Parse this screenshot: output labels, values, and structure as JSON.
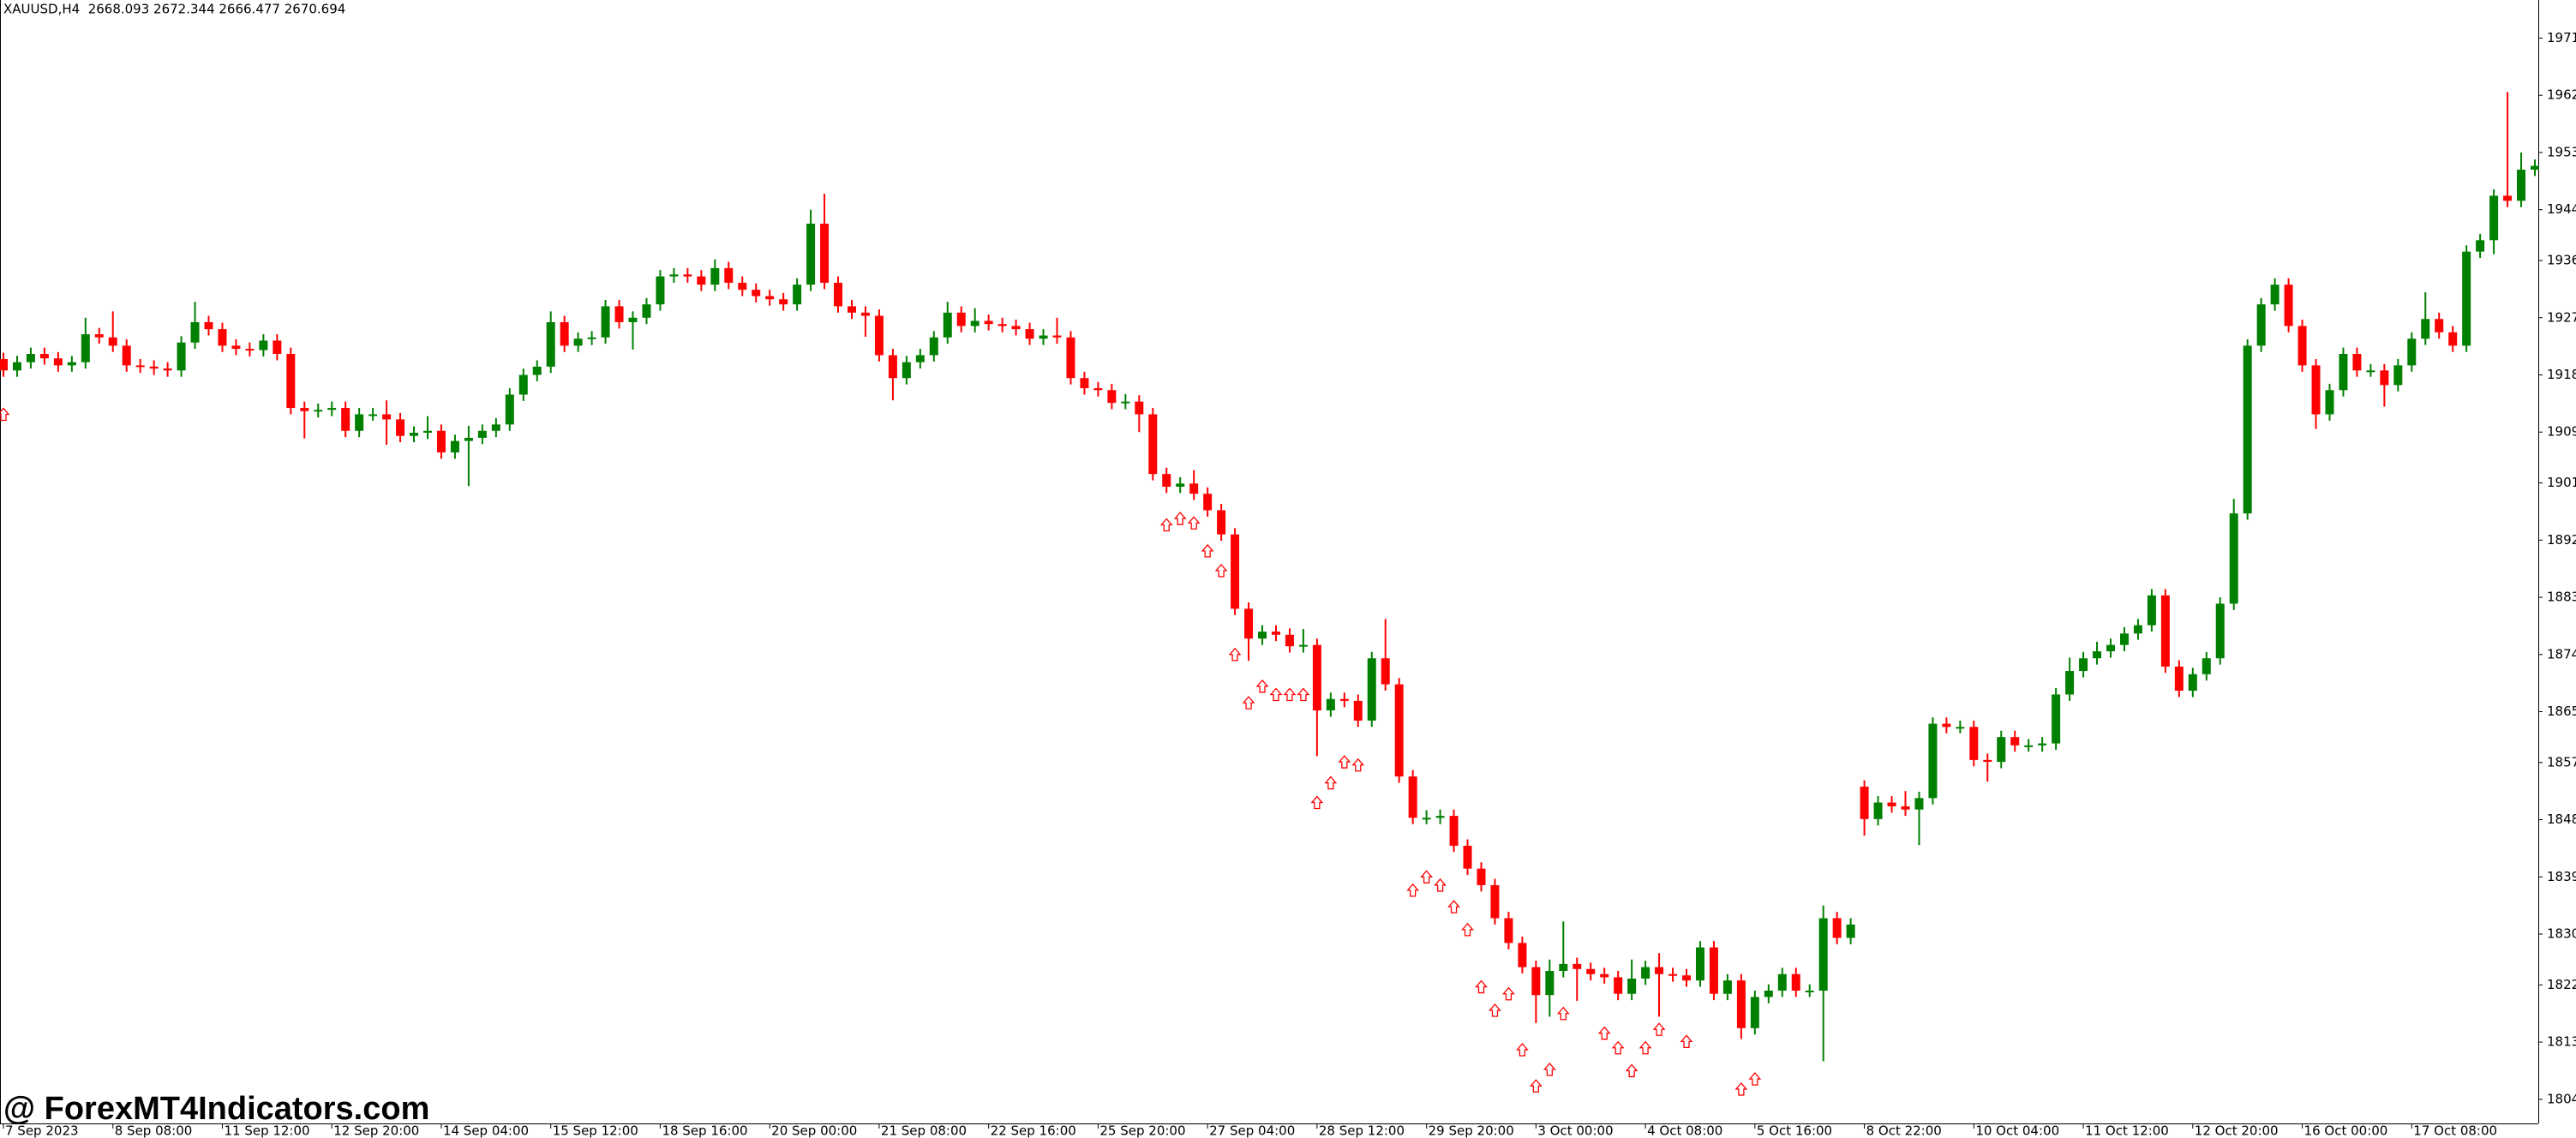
{
  "chart_data": {
    "type": "candlestick",
    "title": "XAUUSD,H4  2668.093 2672.344 2666.477 2670.694",
    "watermark": "@ ForexMT4Indicators.com",
    "up_color": "#008000",
    "down_color": "#ff0000",
    "categories": [
      "7 Sep 2023",
      null,
      null,
      null,
      null,
      null,
      null,
      null,
      "8 Sep 08:00",
      null,
      null,
      null,
      null,
      null,
      null,
      null,
      "11 Sep 12:00",
      null,
      null,
      null,
      null,
      null,
      null,
      null,
      "12 Sep 20:00",
      null,
      null,
      null,
      null,
      null,
      null,
      null,
      "14 Sep 04:00",
      null,
      null,
      null,
      null,
      null,
      null,
      null,
      "15 Sep 12:00",
      null,
      null,
      null,
      null,
      null,
      null,
      null,
      "18 Sep 16:00",
      null,
      null,
      null,
      null,
      null,
      null,
      null,
      "20 Sep 00:00",
      null,
      null,
      null,
      null,
      null,
      null,
      null,
      "21 Sep 08:00",
      null,
      null,
      null,
      null,
      null,
      null,
      null,
      "22 Sep 16:00",
      null,
      null,
      null,
      null,
      null,
      null,
      null,
      "25 Sep 20:00",
      null,
      null,
      null,
      null,
      null,
      null,
      null,
      "27 Sep 04:00",
      null,
      null,
      null,
      null,
      null,
      null,
      null,
      "28 Sep 12:00",
      null,
      null,
      null,
      null,
      null,
      null,
      null,
      "29 Sep 20:00",
      null,
      null,
      null,
      null,
      null,
      null,
      null,
      "3 Oct 00:00",
      null,
      null,
      null,
      null,
      null,
      null,
      null,
      "4 Oct 08:00",
      null,
      null,
      null,
      null,
      null,
      null,
      null,
      "5 Oct 16:00",
      null,
      null,
      null,
      null,
      null,
      null,
      null,
      "8 Oct 22:00",
      null,
      null,
      null,
      null,
      null,
      null,
      null,
      "10 Oct 04:00",
      null,
      null,
      null,
      null,
      null,
      null,
      null,
      "11 Oct 12:00",
      null,
      null,
      null,
      null,
      null,
      null,
      null,
      "12 Oct 20:00",
      null,
      null,
      null,
      null,
      null,
      null,
      null,
      "16 Oct 00:00",
      null,
      null,
      null,
      null,
      null,
      null,
      null,
      "17 Oct 08:00",
      null,
      null,
      null,
      null,
      null,
      null,
      null,
      null,
      null
    ],
    "open": [
      1920.5,
      1918.7,
      1920.0,
      1921.3,
      1920.6,
      1919.5,
      1920.0,
      1924.4,
      1923.9,
      1922.6,
      1919.5,
      1919.3,
      1919.0,
      1918.7,
      1923.1,
      1926.3,
      1925.2,
      1922.6,
      1922.1,
      1921.9,
      1923.4,
      1921.3,
      1912.8,
      1912.3,
      1912.5,
      1912.8,
      1909.2,
      1911.8,
      1911.8,
      1911.0,
      1908.4,
      1908.9,
      1909.2,
      1905.8,
      1907.6,
      1908.1,
      1909.2,
      1910.2,
      1914.9,
      1918.0,
      1919.3,
      1926.3,
      1922.6,
      1923.7,
      1923.9,
      1928.8,
      1926.3,
      1927.0,
      1929.1,
      1933.5,
      1933.8,
      1933.5,
      1932.2,
      1934.8,
      1932.5,
      1931.4,
      1930.4,
      1929.9,
      1929.1,
      1932.2,
      1941.8,
      1932.5,
      1928.8,
      1927.8,
      1927.3,
      1921.1,
      1917.5,
      1920.0,
      1921.1,
      1923.9,
      1927.8,
      1925.7,
      1926.5,
      1926.0,
      1925.7,
      1925.2,
      1923.7,
      1924.2,
      1923.9,
      1917.5,
      1915.9,
      1915.6,
      1913.6,
      1913.8,
      1911.8,
      1902.4,
      1900.4,
      1900.9,
      1899.3,
      1896.7,
      1892.9,
      1881.2,
      1876.5,
      1877.6,
      1877.1,
      1875.3,
      1875.5,
      1865.2,
      1867.0,
      1866.7,
      1863.6,
      1873.4,
      1869.3,
      1854.8,
      1848.3,
      1848.3,
      1848.6,
      1843.9,
      1840.3,
      1837.7,
      1832.5,
      1828.6,
      1824.8,
      1820.4,
      1824.2,
      1825.3,
      1824.5,
      1823.7,
      1823.2,
      1820.6,
      1823.0,
      1824.8,
      1823.7,
      1823.5,
      1822.7,
      1827.9,
      1820.6,
      1822.7,
      1815.2,
      1820.1,
      1821.1,
      1823.7,
      1821.1,
      1821.1,
      1832.5,
      1829.4,
      1853.2,
      1848.1,
      1850.7,
      1850.1,
      1849.6,
      1851.4,
      1863.1,
      1862.6,
      1862.6,
      1857.4,
      1857.1,
      1861.0,
      1859.7,
      1859.7,
      1860.0,
      1867.7,
      1871.4,
      1873.4,
      1874.5,
      1875.5,
      1877.3,
      1878.6,
      1883.3,
      1872.1,
      1868.3,
      1870.9,
      1873.4,
      1882.0,
      1896.2,
      1922.6,
      1929.1,
      1932.2,
      1925.7,
      1919.5,
      1911.8,
      1915.6,
      1921.3,
      1918.7,
      1918.7,
      1916.4,
      1919.5,
      1923.7,
      1926.8,
      1924.7,
      1922.6,
      1937.4,
      1939.2,
      1946.2,
      1945.4,
      1950.3
    ],
    "high": [
      1921.5,
      1921.0,
      1922.3,
      1922.3,
      1921.6,
      1921.0,
      1927.0,
      1925.4,
      1928.0,
      1923.6,
      1920.5,
      1920.3,
      1920.0,
      1924.1,
      1929.5,
      1927.3,
      1926.2,
      1923.6,
      1923.1,
      1924.4,
      1924.4,
      1922.3,
      1913.8,
      1913.5,
      1913.8,
      1913.8,
      1912.8,
      1912.8,
      1914.0,
      1912.0,
      1909.9,
      1911.5,
      1910.2,
      1908.6,
      1910.0,
      1910.2,
      1911.2,
      1915.9,
      1919.0,
      1920.3,
      1928.0,
      1927.3,
      1924.7,
      1924.9,
      1929.8,
      1929.8,
      1928.0,
      1930.1,
      1934.5,
      1934.8,
      1934.8,
      1934.5,
      1936.2,
      1935.8,
      1933.5,
      1932.4,
      1931.4,
      1930.9,
      1933.2,
      1944.0,
      1946.5,
      1933.5,
      1929.8,
      1928.8,
      1928.3,
      1922.1,
      1921.0,
      1922.1,
      1924.9,
      1929.5,
      1928.8,
      1928.5,
      1927.5,
      1927.0,
      1926.7,
      1926.2,
      1925.2,
      1927.0,
      1924.9,
      1918.5,
      1916.9,
      1916.6,
      1915.0,
      1914.8,
      1912.8,
      1903.4,
      1901.9,
      1903.0,
      1900.3,
      1897.7,
      1893.9,
      1882.2,
      1878.6,
      1878.6,
      1878.1,
      1878.0,
      1876.5,
      1868.0,
      1868.0,
      1867.7,
      1874.4,
      1879.6,
      1870.3,
      1855.8,
      1849.5,
      1849.6,
      1849.6,
      1844.9,
      1841.3,
      1838.7,
      1833.5,
      1829.6,
      1825.8,
      1826.0,
      1832.0,
      1826.3,
      1825.5,
      1824.7,
      1824.2,
      1826.0,
      1825.8,
      1827.0,
      1824.7,
      1824.5,
      1828.9,
      1828.9,
      1823.7,
      1823.7,
      1821.1,
      1822.1,
      1824.7,
      1824.7,
      1822.1,
      1834.5,
      1833.5,
      1832.5,
      1854.2,
      1851.7,
      1851.7,
      1852.5,
      1852.4,
      1864.1,
      1864.1,
      1863.6,
      1863.6,
      1858.4,
      1862.0,
      1862.0,
      1860.7,
      1861.0,
      1868.7,
      1873.5,
      1874.4,
      1876.0,
      1876.5,
      1878.3,
      1879.6,
      1884.3,
      1884.3,
      1873.1,
      1871.9,
      1874.4,
      1883.0,
      1898.5,
      1923.6,
      1930.1,
      1933.2,
      1933.2,
      1926.7,
      1920.5,
      1916.6,
      1922.3,
      1922.3,
      1919.7,
      1919.7,
      1920.5,
      1924.7,
      1931.0,
      1927.8,
      1925.7,
      1938.4,
      1940.2,
      1947.2,
      1962.5,
      1953.0,
      1951.9
    ],
    "low": [
      1917.7,
      1917.7,
      1919.0,
      1919.6,
      1918.5,
      1918.5,
      1919.0,
      1922.9,
      1921.6,
      1918.5,
      1918.3,
      1918.0,
      1917.7,
      1917.7,
      1922.1,
      1924.2,
      1921.6,
      1921.1,
      1920.9,
      1920.9,
      1920.3,
      1911.8,
      1908.0,
      1911.3,
      1911.5,
      1908.2,
      1908.2,
      1910.8,
      1907.0,
      1907.4,
      1907.4,
      1907.9,
      1904.8,
      1904.8,
      1900.5,
      1907.1,
      1908.2,
      1909.2,
      1913.9,
      1917.0,
      1918.3,
      1921.6,
      1921.6,
      1922.7,
      1922.9,
      1925.3,
      1922.0,
      1926.0,
      1928.1,
      1932.5,
      1932.5,
      1931.2,
      1931.2,
      1931.5,
      1930.4,
      1929.4,
      1928.9,
      1928.1,
      1928.1,
      1931.2,
      1931.5,
      1927.8,
      1926.8,
      1924.0,
      1920.1,
      1914.0,
      1916.5,
      1919.0,
      1920.1,
      1922.9,
      1924.7,
      1924.7,
      1925.0,
      1924.7,
      1924.2,
      1922.7,
      1922.7,
      1922.9,
      1916.5,
      1914.9,
      1914.6,
      1912.6,
      1912.6,
      1909.0,
      1901.4,
      1899.4,
      1899.4,
      1898.3,
      1895.7,
      1891.9,
      1880.2,
      1873.0,
      1875.5,
      1876.1,
      1874.3,
      1874.3,
      1858.0,
      1864.2,
      1865.7,
      1862.6,
      1862.6,
      1868.3,
      1853.8,
      1847.3,
      1847.3,
      1847.3,
      1842.9,
      1839.3,
      1836.7,
      1831.5,
      1827.6,
      1823.8,
      1816.0,
      1817.0,
      1823.2,
      1819.5,
      1822.7,
      1822.2,
      1819.6,
      1819.6,
      1822.0,
      1817.0,
      1822.5,
      1821.7,
      1821.7,
      1819.6,
      1819.6,
      1813.5,
      1814.2,
      1819.1,
      1820.1,
      1820.1,
      1820.1,
      1810.0,
      1828.4,
      1828.4,
      1845.5,
      1847.1,
      1849.1,
      1848.6,
      1844.0,
      1850.4,
      1861.6,
      1861.6,
      1856.4,
      1854.0,
      1856.1,
      1858.7,
      1858.7,
      1858.7,
      1859.0,
      1866.7,
      1870.4,
      1872.4,
      1873.5,
      1874.5,
      1876.3,
      1877.6,
      1871.1,
      1867.3,
      1867.3,
      1869.9,
      1872.4,
      1881.0,
      1895.2,
      1921.6,
      1928.1,
      1924.7,
      1918.5,
      1909.5,
      1910.8,
      1914.6,
      1917.7,
      1917.7,
      1913.0,
      1915.4,
      1918.5,
      1922.7,
      1923.7,
      1921.6,
      1921.6,
      1936.4,
      1937.0,
      1944.4,
      1944.4,
      1949.3
    ],
    "close": [
      1918.7,
      1920.0,
      1921.3,
      1920.6,
      1919.5,
      1920.0,
      1924.4,
      1923.9,
      1922.6,
      1919.5,
      1919.3,
      1919.0,
      1918.7,
      1923.1,
      1926.3,
      1925.2,
      1922.6,
      1922.1,
      1921.9,
      1923.4,
      1921.3,
      1912.8,
      1912.3,
      1912.5,
      1912.8,
      1909.2,
      1911.8,
      1911.8,
      1911.0,
      1908.4,
      1908.9,
      1909.2,
      1905.8,
      1907.6,
      1908.1,
      1909.2,
      1910.2,
      1914.9,
      1918.0,
      1919.3,
      1926.3,
      1922.6,
      1923.7,
      1923.9,
      1928.8,
      1926.3,
      1927.0,
      1929.1,
      1933.5,
      1933.8,
      1933.5,
      1932.2,
      1934.8,
      1932.5,
      1931.4,
      1930.4,
      1929.9,
      1929.1,
      1932.2,
      1941.8,
      1932.5,
      1928.8,
      1927.8,
      1927.3,
      1921.1,
      1917.5,
      1920.0,
      1921.1,
      1923.9,
      1927.8,
      1925.7,
      1926.5,
      1926.0,
      1925.7,
      1925.2,
      1923.7,
      1924.2,
      1923.9,
      1917.5,
      1915.9,
      1915.6,
      1913.6,
      1913.8,
      1911.8,
      1902.4,
      1900.4,
      1900.9,
      1899.3,
      1896.7,
      1892.9,
      1881.2,
      1876.5,
      1877.6,
      1877.1,
      1875.3,
      1875.5,
      1865.2,
      1867.0,
      1866.7,
      1863.6,
      1873.4,
      1869.3,
      1854.8,
      1848.3,
      1848.3,
      1848.6,
      1843.9,
      1840.3,
      1837.7,
      1832.5,
      1828.6,
      1824.8,
      1820.4,
      1824.2,
      1825.3,
      1824.5,
      1823.7,
      1823.2,
      1820.6,
      1823.0,
      1824.8,
      1823.7,
      1823.5,
      1822.7,
      1827.9,
      1820.6,
      1822.7,
      1815.2,
      1820.1,
      1821.1,
      1823.7,
      1821.1,
      1821.1,
      1832.5,
      1829.4,
      1831.5,
      1848.1,
      1850.7,
      1850.1,
      1849.6,
      1851.4,
      1863.1,
      1862.6,
      1862.6,
      1857.4,
      1857.1,
      1861.0,
      1859.7,
      1859.7,
      1860.0,
      1867.7,
      1871.4,
      1873.4,
      1874.5,
      1875.5,
      1877.3,
      1878.6,
      1883.3,
      1872.1,
      1868.3,
      1870.9,
      1873.4,
      1882.0,
      1896.2,
      1922.6,
      1929.1,
      1932.2,
      1925.7,
      1919.5,
      1911.8,
      1915.6,
      1921.3,
      1918.7,
      1918.7,
      1916.4,
      1919.5,
      1923.7,
      1926.8,
      1924.7,
      1922.6,
      1937.4,
      1939.2,
      1946.2,
      1945.4,
      1950.3,
      1950.9
    ],
    "ylim": [
      1800.2,
      1977.0
    ],
    "yticks": [
      1971,
      1962,
      1953,
      1944,
      1936,
      1927,
      1918,
      1909,
      1901,
      1892,
      1883,
      1874,
      1865,
      1857,
      1848,
      1839,
      1830,
      1822,
      1813,
      1804
    ],
    "signals": {
      "color": "#ff0000",
      "x": [
        0,
        85,
        86,
        87,
        88,
        89,
        90,
        91,
        92,
        93,
        94,
        95,
        96,
        97,
        98,
        99,
        103,
        104,
        105,
        106,
        107,
        108,
        109,
        110,
        111,
        112,
        113,
        114,
        117,
        118,
        119,
        120,
        121,
        123,
        127,
        128
      ],
      "values": [
        1911.8,
        1894.4,
        1895.4,
        1894.7,
        1890.3,
        1887.2,
        1874.0,
        1866.4,
        1869.0,
        1867.7,
        1867.7,
        1867.7,
        1850.7,
        1853.8,
        1857.1,
        1856.6,
        1836.9,
        1839.0,
        1837.7,
        1834.3,
        1830.7,
        1821.7,
        1818.0,
        1820.6,
        1811.8,
        1806.1,
        1808.7,
        1817.5,
        1814.4,
        1812.1,
        1808.5,
        1812.1,
        1815.0,
        1813.1,
        1805.6,
        1807.2
      ]
    }
  }
}
